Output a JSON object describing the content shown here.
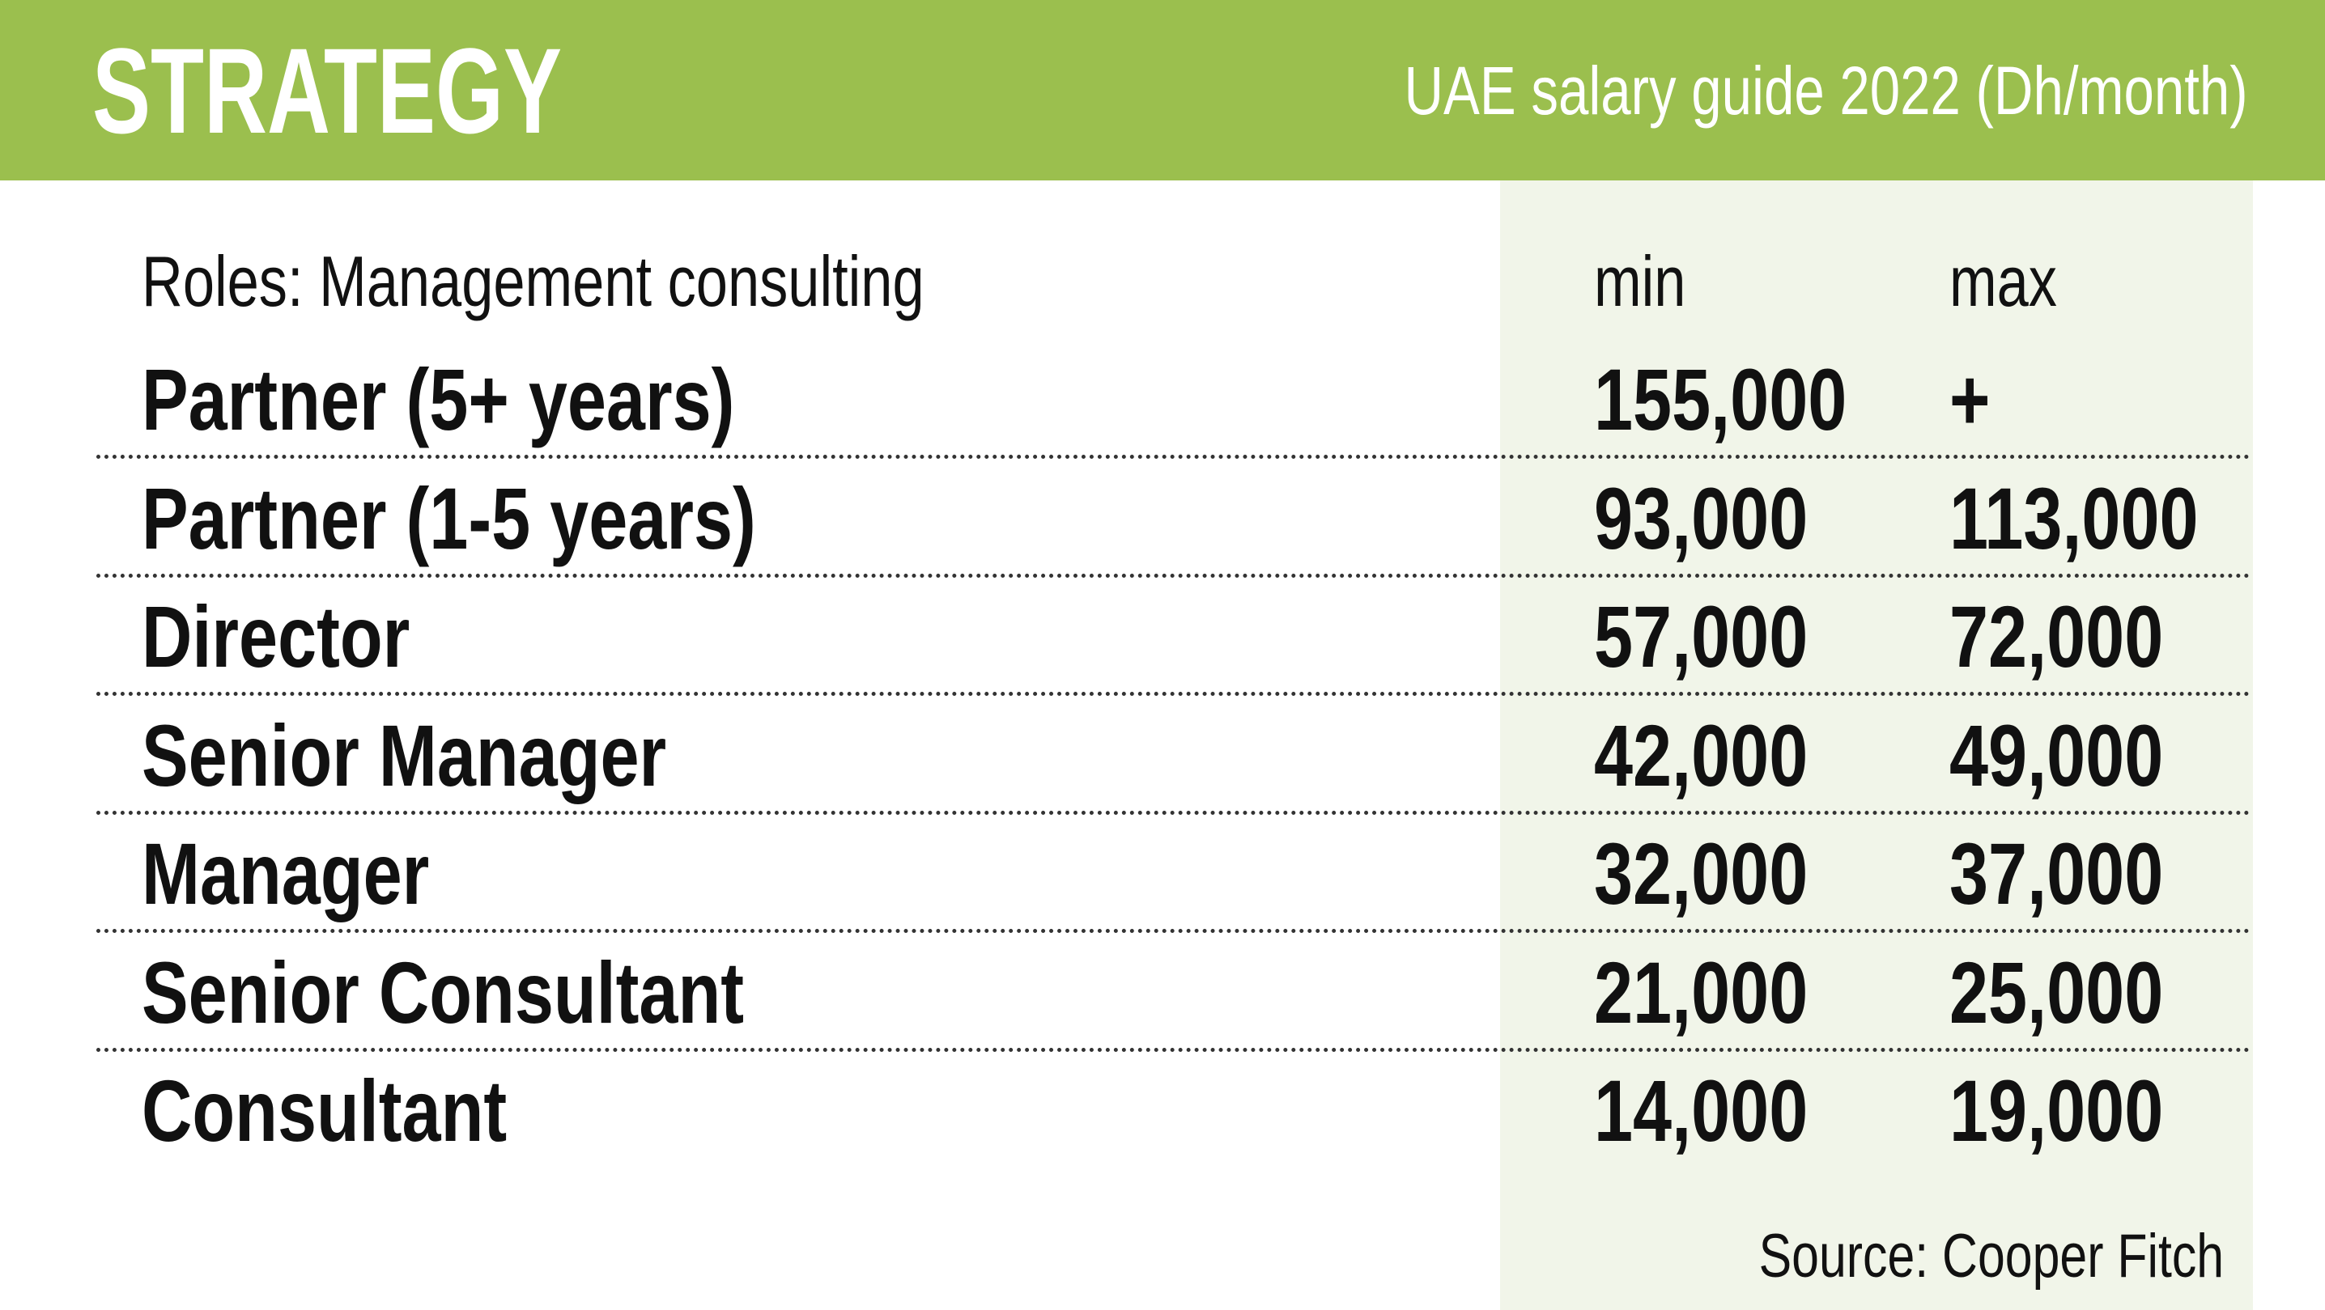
{
  "header": {
    "title": "STRATEGY",
    "subtitle": "UAE salary guide 2022 (Dh/month)"
  },
  "table": {
    "columns": [
      "Roles: Management consulting",
      "min",
      "max"
    ],
    "rows": [
      [
        "Partner (5+ years)",
        "155,000",
        "+"
      ],
      [
        "Partner (1-5 years)",
        "93,000",
        "113,000"
      ],
      [
        "Director",
        "57,000",
        "72,000"
      ],
      [
        "Senior Manager",
        "42,000",
        "49,000"
      ],
      [
        "Manager",
        "32,000",
        "37,000"
      ],
      [
        "Senior Consultant",
        "21,000",
        "25,000"
      ],
      [
        "Consultant",
        "14,000",
        "19,000"
      ]
    ]
  },
  "source": "Source: Cooper Fitch"
}
